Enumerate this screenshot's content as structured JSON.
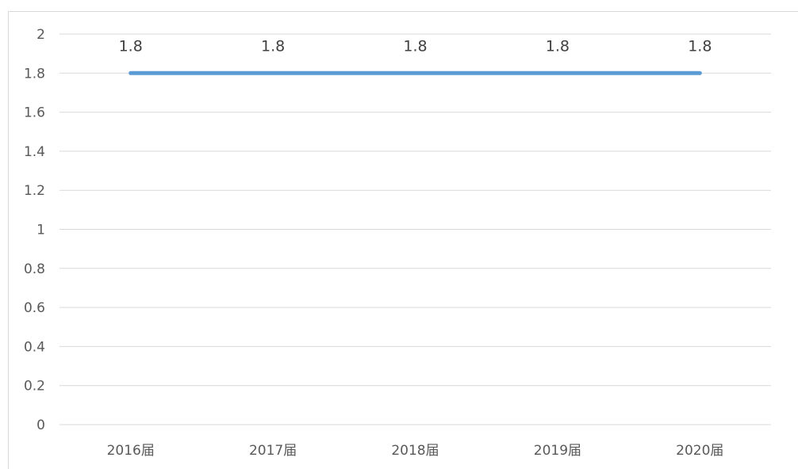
{
  "chart_data": {
    "type": "line",
    "title": "",
    "xlabel": "",
    "ylabel": "",
    "categories": [
      "2016届",
      "2017届",
      "2018届",
      "2019届",
      "2020届"
    ],
    "series": [
      {
        "values": [
          1.8,
          1.8,
          1.8,
          1.8,
          1.8
        ],
        "color": "#5b9bd5",
        "data_labels": [
          "1.8",
          "1.8",
          "1.8",
          "1.8",
          "1.8"
        ]
      }
    ],
    "ylim": [
      0,
      2
    ],
    "yticks": [
      0,
      0.2,
      0.4,
      0.6,
      0.8,
      1,
      1.2,
      1.4,
      1.6,
      1.8,
      2
    ],
    "ytick_labels": [
      "0",
      "0.2",
      "0.4",
      "0.6",
      "0.8",
      "1",
      "1.2",
      "1.4",
      "1.6",
      "1.8",
      "2"
    ],
    "grid": true,
    "legend": "none"
  }
}
